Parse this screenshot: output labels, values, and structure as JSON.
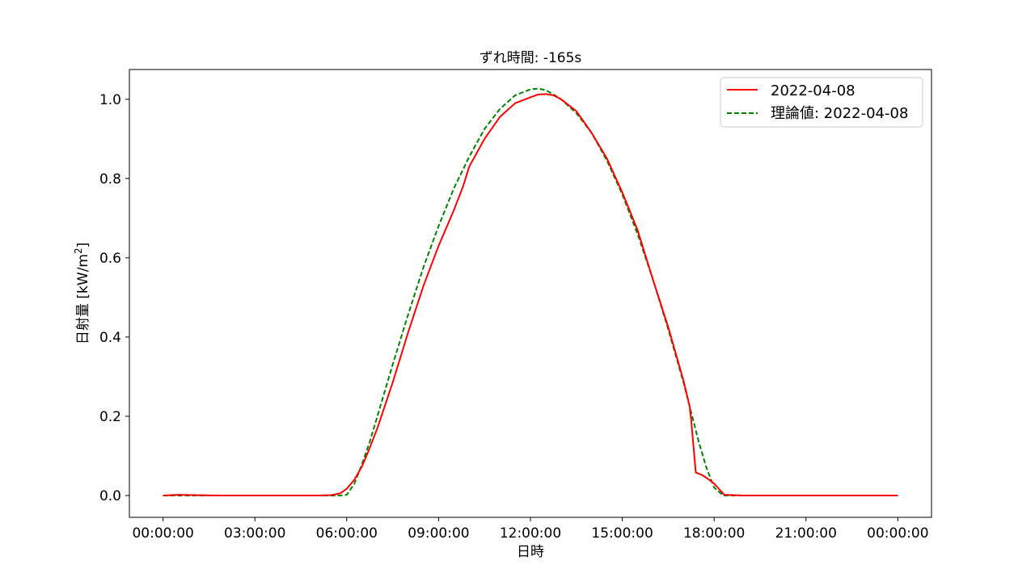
{
  "chart_data": {
    "type": "line",
    "title": "ずれ時間: -165s",
    "xlabel": "日時",
    "ylabel": "日射量 [kW/m²]",
    "ylabel_parts": {
      "text": "日射量 [kW/m",
      "sup": "2",
      "close": "]"
    },
    "xlim": [
      -1.1,
      25.1
    ],
    "ylim": [
      -0.055,
      1.075
    ],
    "x_unit": "hours since 00:00:00",
    "x_ticks": [
      0,
      3,
      6,
      9,
      12,
      15,
      18,
      21,
      24
    ],
    "x_tick_labels": [
      "00:00:00",
      "03:00:00",
      "06:00:00",
      "09:00:00",
      "12:00:00",
      "15:00:00",
      "18:00:00",
      "21:00:00",
      "00:00:00"
    ],
    "y_ticks": [
      0.0,
      0.2,
      0.4,
      0.6,
      0.8,
      1.0
    ],
    "y_tick_labels": [
      "0.0",
      "0.2",
      "0.4",
      "0.6",
      "0.8",
      "1.0"
    ],
    "grid": false,
    "legend_position": "top-right",
    "series": [
      {
        "name": "2022-04-08",
        "color": "#ff0000",
        "style": "solid",
        "x": [
          0.0,
          0.5,
          1.0,
          2.0,
          3.0,
          4.0,
          5.0,
          5.5,
          5.8,
          6.0,
          6.25,
          6.5,
          6.75,
          7.0,
          7.5,
          8.0,
          8.5,
          9.0,
          9.5,
          9.6,
          9.8,
          10.0,
          10.5,
          11.0,
          11.5,
          12.0,
          12.25,
          12.5,
          12.75,
          13.0,
          13.5,
          14.0,
          14.5,
          15.0,
          15.5,
          16.0,
          16.5,
          17.0,
          17.2,
          17.25,
          17.4,
          17.6,
          17.8,
          18.0,
          18.33,
          19.0,
          20.0,
          21.0,
          22.0,
          23.0,
          24.0
        ],
        "y": [
          0.0,
          0.002,
          0.001,
          0.0,
          0.0,
          0.0,
          0.0,
          0.001,
          0.006,
          0.017,
          0.04,
          0.074,
          0.12,
          0.17,
          0.285,
          0.41,
          0.528,
          0.63,
          0.72,
          0.74,
          0.78,
          0.83,
          0.9,
          0.955,
          0.99,
          1.005,
          1.012,
          1.013,
          1.01,
          1.0,
          0.97,
          0.915,
          0.85,
          0.765,
          0.67,
          0.545,
          0.425,
          0.29,
          0.225,
          0.19,
          0.058,
          0.052,
          0.042,
          0.03,
          0.002,
          0.0,
          0.0,
          0.0,
          0.0,
          0.0,
          0.0
        ]
      },
      {
        "name": "理論値: 2022-04-08",
        "color": "#008000",
        "style": "dashed",
        "x": [
          0.0,
          1.0,
          2.0,
          3.0,
          4.0,
          5.0,
          5.5,
          5.8,
          6.0,
          6.25,
          6.5,
          6.75,
          7.0,
          7.5,
          8.0,
          8.5,
          9.0,
          9.5,
          10.0,
          10.5,
          11.0,
          11.5,
          12.0,
          12.25,
          12.5,
          12.75,
          13.0,
          13.5,
          14.0,
          14.5,
          15.0,
          15.5,
          16.0,
          16.5,
          17.0,
          17.25,
          17.5,
          17.75,
          18.0,
          18.3,
          18.5,
          19.0,
          20.0,
          21.0,
          22.0,
          23.0,
          24.0
        ],
        "y": [
          0.0,
          0.0,
          0.0,
          0.0,
          0.0,
          0.0,
          0.0,
          0.0,
          0.002,
          0.03,
          0.08,
          0.135,
          0.2,
          0.33,
          0.455,
          0.575,
          0.68,
          0.775,
          0.855,
          0.925,
          0.975,
          1.01,
          1.025,
          1.027,
          1.023,
          1.012,
          1.0,
          0.965,
          0.915,
          0.845,
          0.76,
          0.66,
          0.545,
          0.42,
          0.285,
          0.21,
          0.135,
          0.07,
          0.02,
          0.0,
          0.0,
          0.0,
          0.0,
          0.0,
          0.0,
          0.0,
          0.0
        ]
      }
    ]
  }
}
